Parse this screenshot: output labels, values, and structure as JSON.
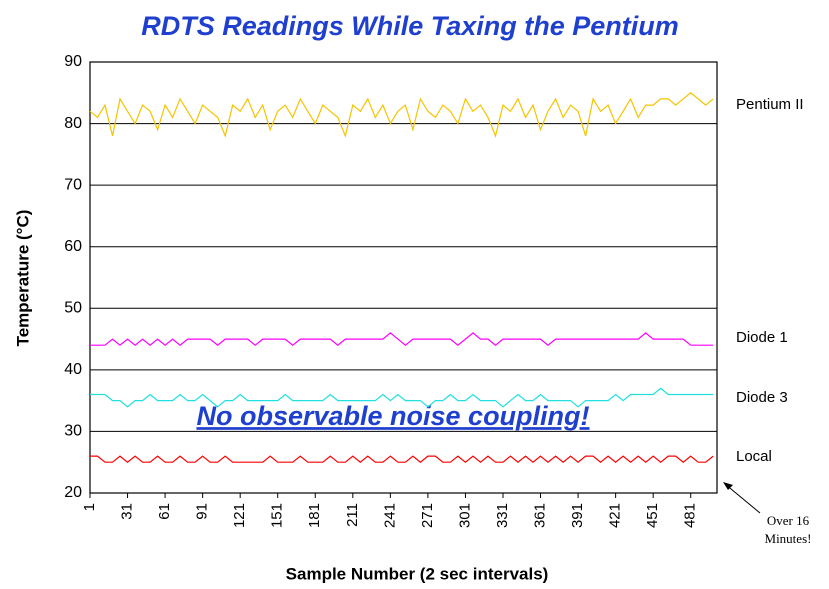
{
  "chart_data": {
    "type": "line",
    "title": "RDTS Readings While Taxing the Pentium",
    "x_label": "Sample Number (2 sec intervals)",
    "y_label": "Temperature (°C)",
    "annotations": [
      "No observable noise coupling!",
      "Over 16",
      "Minutes!"
    ],
    "xlim": [
      1,
      502
    ],
    "xticks": [
      1,
      31,
      61,
      91,
      121,
      151,
      181,
      211,
      241,
      271,
      301,
      331,
      361,
      391,
      421,
      451,
      481
    ],
    "ylim": [
      20,
      90
    ],
    "yticks": [
      20,
      30,
      40,
      50,
      60,
      70,
      80,
      90
    ],
    "grid": true,
    "x": [
      1,
      7,
      13,
      19,
      25,
      31,
      37,
      43,
      49,
      55,
      61,
      67,
      73,
      79,
      85,
      91,
      97,
      103,
      109,
      115,
      121,
      127,
      133,
      139,
      145,
      151,
      157,
      163,
      169,
      175,
      181,
      187,
      193,
      199,
      205,
      211,
      217,
      223,
      229,
      235,
      241,
      247,
      253,
      259,
      265,
      271,
      277,
      283,
      289,
      295,
      301,
      307,
      313,
      319,
      325,
      331,
      337,
      343,
      349,
      355,
      361,
      367,
      373,
      379,
      385,
      391,
      397,
      403,
      409,
      415,
      421,
      427,
      433,
      439,
      445,
      451,
      457,
      463,
      469,
      475,
      481,
      487,
      493,
      499
    ],
    "series": [
      {
        "name": "Pentium II",
        "color": "#f5c400",
        "values": [
          82,
          81,
          83,
          78,
          84,
          82,
          80,
          83,
          82,
          79,
          83,
          81,
          84,
          82,
          80,
          83,
          82,
          81,
          78,
          83,
          82,
          84,
          81,
          83,
          79,
          82,
          83,
          81,
          84,
          82,
          80,
          83,
          82,
          81,
          78,
          83,
          82,
          84,
          81,
          83,
          80,
          82,
          83,
          79,
          84,
          82,
          81,
          83,
          82,
          80,
          84,
          82,
          83,
          81,
          78,
          83,
          82,
          84,
          81,
          83,
          79,
          82,
          84,
          81,
          83,
          82,
          78,
          84,
          82,
          83,
          80,
          82,
          84,
          81,
          83,
          83,
          84,
          84,
          83,
          84,
          85,
          84,
          83,
          84
        ]
      },
      {
        "name": "Diode 1",
        "color": "#ff00ff",
        "values": [
          44,
          44,
          44,
          45,
          44,
          45,
          44,
          45,
          44,
          45,
          44,
          45,
          44,
          45,
          45,
          45,
          45,
          44,
          45,
          45,
          45,
          45,
          44,
          45,
          45,
          45,
          45,
          44,
          45,
          45,
          45,
          45,
          45,
          44,
          45,
          45,
          45,
          45,
          45,
          45,
          46,
          45,
          44,
          45,
          45,
          45,
          45,
          45,
          45,
          44,
          45,
          46,
          45,
          45,
          44,
          45,
          45,
          45,
          45,
          45,
          45,
          44,
          45,
          45,
          45,
          45,
          45,
          45,
          45,
          45,
          45,
          45,
          45,
          45,
          46,
          45,
          45,
          45,
          45,
          45,
          44,
          44,
          44,
          44
        ]
      },
      {
        "name": "Diode 3",
        "color": "#22e0e0",
        "values": [
          36,
          36,
          36,
          35,
          35,
          34,
          35,
          35,
          36,
          35,
          35,
          35,
          36,
          35,
          35,
          36,
          35,
          34,
          35,
          35,
          36,
          35,
          35,
          35,
          35,
          35,
          36,
          35,
          35,
          35,
          35,
          35,
          36,
          35,
          35,
          35,
          35,
          35,
          35,
          36,
          35,
          36,
          35,
          35,
          35,
          34,
          35,
          35,
          36,
          35,
          35,
          36,
          35,
          35,
          35,
          34,
          35,
          36,
          35,
          35,
          36,
          35,
          35,
          35,
          35,
          34,
          35,
          35,
          35,
          35,
          36,
          35,
          36,
          36,
          36,
          36,
          37,
          36,
          36,
          36,
          36,
          36,
          36,
          36
        ]
      },
      {
        "name": "Local",
        "color": "#ff0000",
        "values": [
          26,
          26,
          25,
          25,
          26,
          25,
          26,
          25,
          25,
          26,
          25,
          25,
          26,
          25,
          25,
          26,
          25,
          25,
          26,
          25,
          25,
          25,
          25,
          25,
          26,
          25,
          25,
          25,
          26,
          25,
          25,
          25,
          26,
          25,
          25,
          26,
          25,
          26,
          25,
          25,
          26,
          25,
          25,
          26,
          25,
          26,
          26,
          25,
          25,
          26,
          25,
          26,
          25,
          26,
          25,
          25,
          26,
          25,
          26,
          25,
          26,
          25,
          26,
          25,
          26,
          25,
          26,
          26,
          25,
          26,
          25,
          26,
          25,
          26,
          25,
          26,
          25,
          26,
          26,
          25,
          26,
          25,
          25,
          26
        ]
      }
    ]
  }
}
